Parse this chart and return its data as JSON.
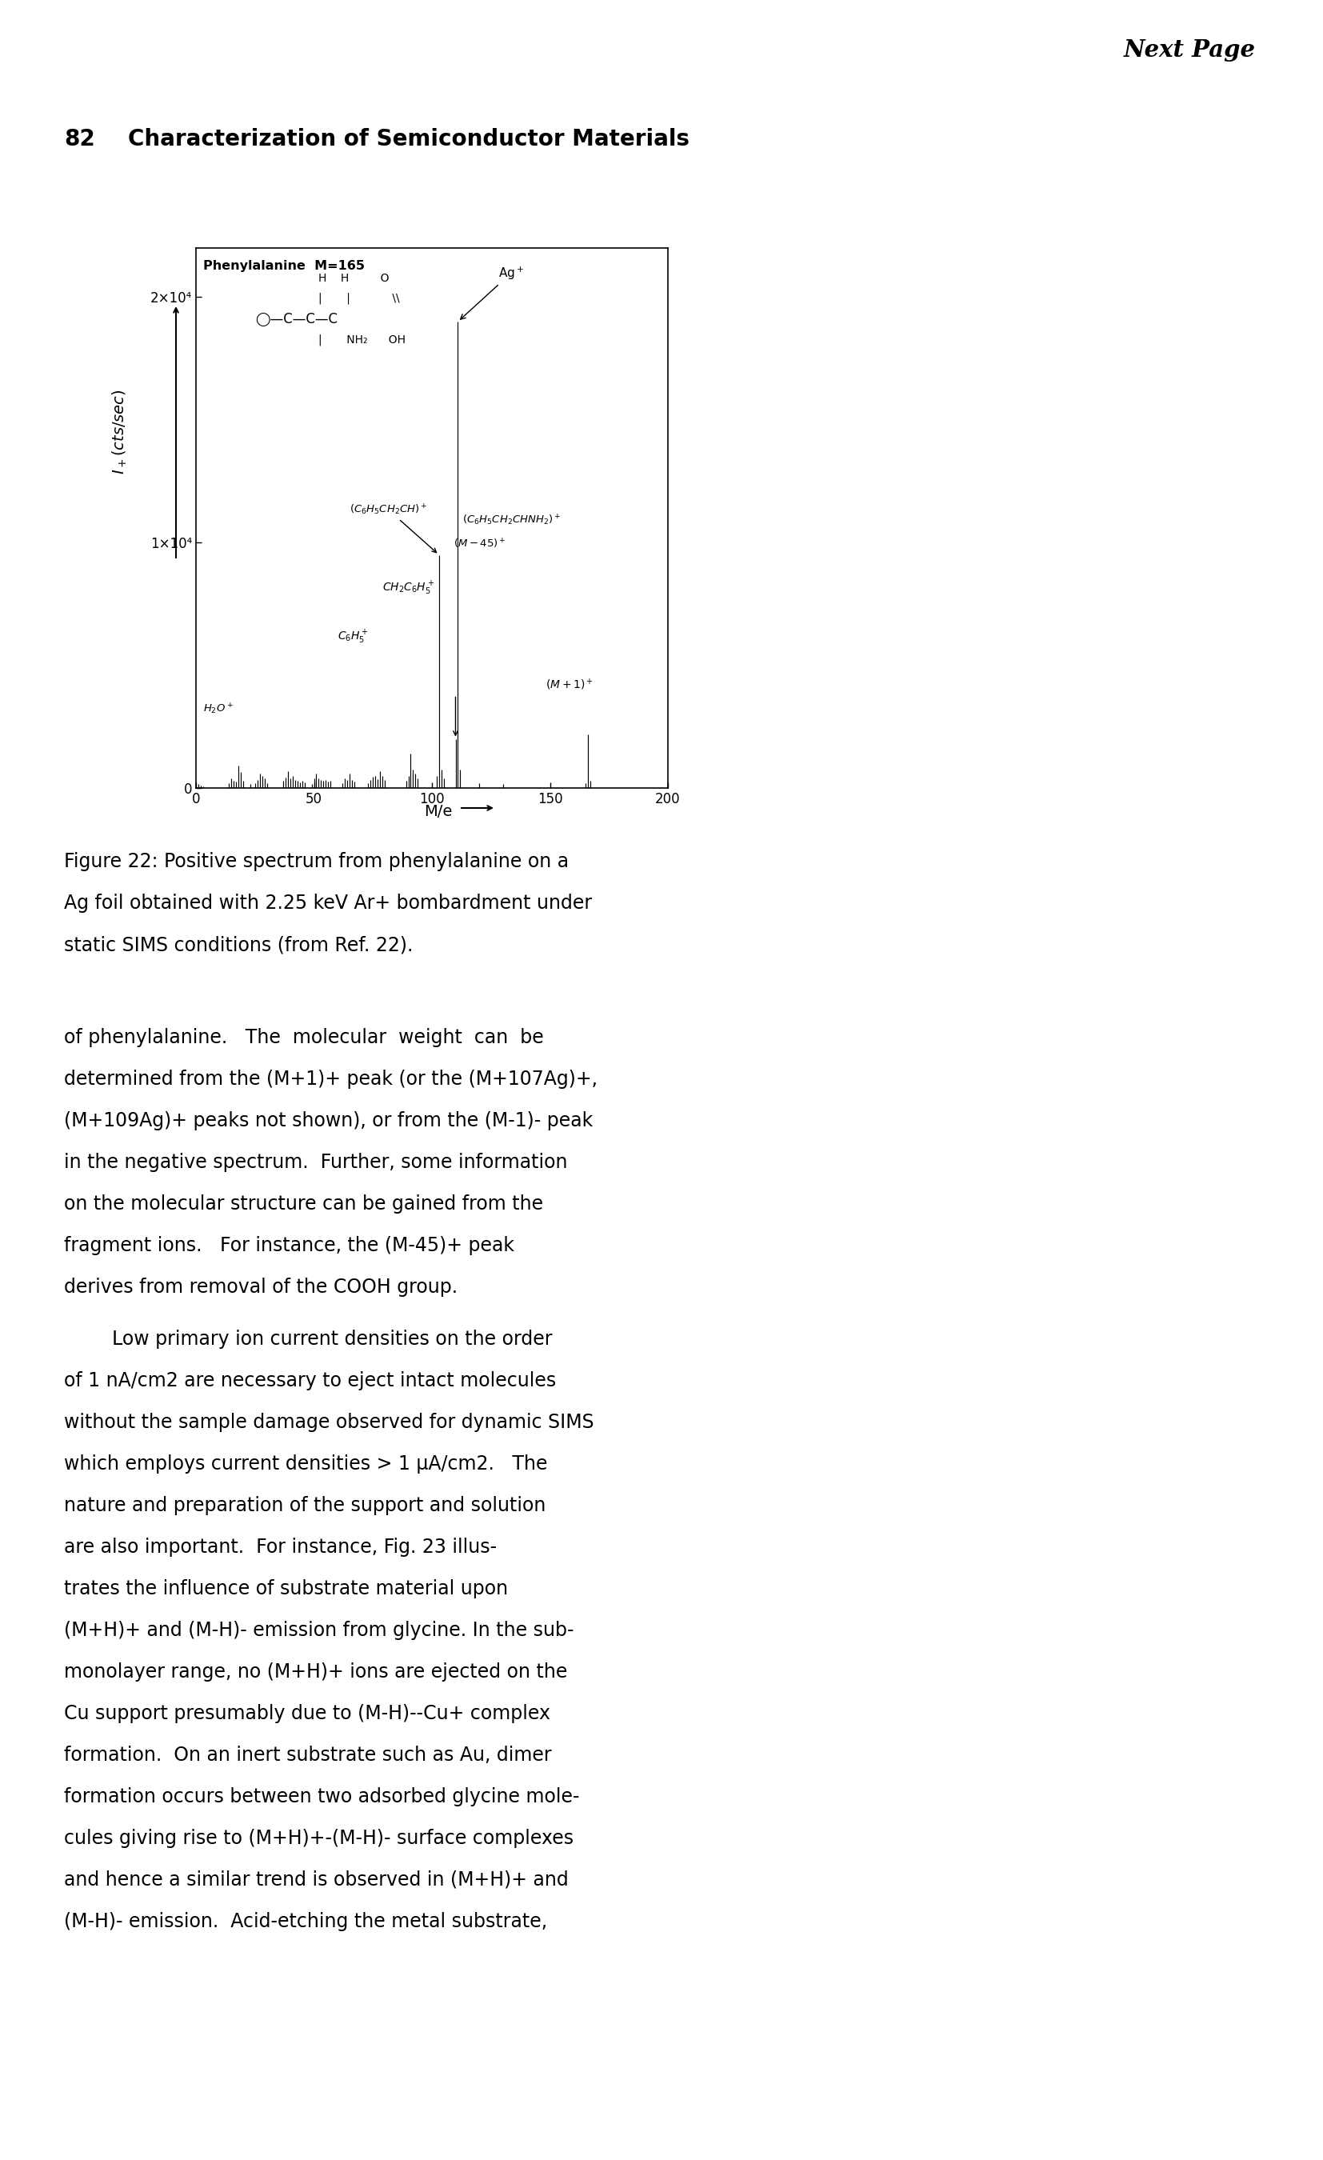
{
  "page_header": "Next Page",
  "page_number": "82",
  "page_subtitle": "Characterization of Semiconductor Materials",
  "figure_caption": [
    "Figure 22: Positive spectrum from phenylalanine on a",
    "Ag foil obtained with 2.25 keV Ar+ bombardment under",
    "static SIMS conditions (from Ref. 22)."
  ],
  "body_text": [
    "of phenylalanine.   The  molecular  weight  can  be",
    "determined from the (M+1)+ peak (or the (M+107Ag)+,",
    "(M+109Ag)+ peaks not shown), or from the (M-1)- peak",
    "in the negative spectrum.  Further, some information",
    "on the molecular structure can be gained from the",
    "fragment ions.   For instance, the (M-45)+ peak",
    "derives from removal of the COOH group.",
    "        Low primary ion current densities on the order",
    "of 1 nA/cm2 are necessary to eject intact molecules",
    "without the sample damage observed for dynamic SIMS",
    "which employs current densities > 1 μA/cm2.   The",
    "nature and preparation of the support and solution",
    "are also important.  For instance, Fig. 23 illus-",
    "trates the influence of substrate material upon",
    "(M+H)+ and (M-H)- emission from glycine. In the sub-",
    "monolayer range, no (M+H)+ ions are ejected on the",
    "Cu support presumably due to (M-H)--Cu+ complex",
    "formation.  On an inert substrate such as Au, dimer",
    "formation occurs between two adsorbed glycine mole-",
    "cules giving rise to (M+H)+-(M-H)- surface complexes",
    "and hence a similar trend is observed in (M+H)+ and",
    "(M-H)- emission.  Acid-etching the metal substrate,"
  ],
  "spectrum": {
    "xlim": [
      0,
      200
    ],
    "ylim": [
      0,
      22000
    ],
    "ytick_vals": [
      0,
      10000,
      20000
    ],
    "ytick_labels": [
      "0",
      "1×10⁴",
      "2×10⁴"
    ],
    "xticks": [
      0,
      50,
      100,
      150,
      200
    ],
    "peaks": [
      [
        1,
        150
      ],
      [
        2,
        110
      ],
      [
        3,
        80
      ],
      [
        14,
        200
      ],
      [
        15,
        380
      ],
      [
        16,
        300
      ],
      [
        17,
        250
      ],
      [
        18,
        900
      ],
      [
        19,
        650
      ],
      [
        20,
        300
      ],
      [
        23,
        150
      ],
      [
        25,
        200
      ],
      [
        26,
        320
      ],
      [
        27,
        600
      ],
      [
        28,
        480
      ],
      [
        29,
        380
      ],
      [
        30,
        200
      ],
      [
        37,
        280
      ],
      [
        38,
        420
      ],
      [
        39,
        700
      ],
      [
        40,
        380
      ],
      [
        41,
        500
      ],
      [
        42,
        330
      ],
      [
        43,
        280
      ],
      [
        44,
        230
      ],
      [
        45,
        280
      ],
      [
        46,
        220
      ],
      [
        49,
        150
      ],
      [
        50,
        380
      ],
      [
        51,
        600
      ],
      [
        52,
        380
      ],
      [
        53,
        320
      ],
      [
        54,
        280
      ],
      [
        55,
        330
      ],
      [
        56,
        260
      ],
      [
        57,
        280
      ],
      [
        62,
        200
      ],
      [
        63,
        380
      ],
      [
        64,
        330
      ],
      [
        65,
        600
      ],
      [
        66,
        330
      ],
      [
        67,
        260
      ],
      [
        73,
        200
      ],
      [
        74,
        330
      ],
      [
        75,
        450
      ],
      [
        76,
        500
      ],
      [
        77,
        350
      ],
      [
        78,
        700
      ],
      [
        79,
        500
      ],
      [
        80,
        330
      ],
      [
        89,
        300
      ],
      [
        90,
        500
      ],
      [
        91,
        1400
      ],
      [
        92,
        750
      ],
      [
        93,
        580
      ],
      [
        94,
        380
      ],
      [
        102,
        500
      ],
      [
        103,
        9500
      ],
      [
        104,
        750
      ],
      [
        105,
        400
      ],
      [
        110,
        2000
      ],
      [
        111,
        19000
      ],
      [
        112,
        750
      ],
      [
        120,
        200
      ],
      [
        130,
        150
      ],
      [
        165,
        200
      ],
      [
        166,
        2200
      ],
      [
        167,
        300
      ]
    ]
  },
  "background_color": "#ffffff",
  "text_color": "#000000"
}
